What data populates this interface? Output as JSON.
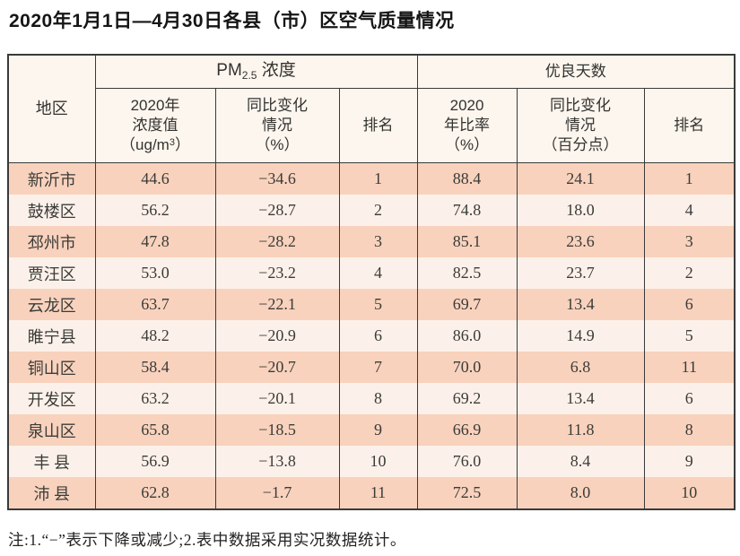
{
  "title": "2020年1月1日—4月30日各县（市）区空气质量情况",
  "table": {
    "region_header": "地区",
    "pm_group": {
      "prefix": "PM",
      "sub": "2.5",
      "suffix": " 浓度"
    },
    "good_days_group": "优良天数",
    "pm_conc_header": {
      "line1": "2020年",
      "line2": "浓度值",
      "line3_pre": "（ug/m",
      "line3_sup": "3",
      "line3_post": "）"
    },
    "pm_change_header": {
      "line1": "同比变化",
      "line2": "情况",
      "line3": "（%）"
    },
    "pm_rank_header": "排名",
    "ratio_header": {
      "line1": "2020",
      "line2": "年比率",
      "line3": "（%）"
    },
    "ratio_change_header": {
      "line1": "同比变化",
      "line2": "情况",
      "line3": "（百分点）"
    },
    "ratio_rank_header": "排名",
    "rows": [
      {
        "region": "新沂市",
        "pm_value": "44.6",
        "pm_change": "−34.6",
        "pm_rank": "1",
        "ratio": "88.4",
        "ratio_change": "24.1",
        "ratio_rank": "1"
      },
      {
        "region": "鼓楼区",
        "pm_value": "56.2",
        "pm_change": "−28.7",
        "pm_rank": "2",
        "ratio": "74.8",
        "ratio_change": "18.0",
        "ratio_rank": "4"
      },
      {
        "region": "邳州市",
        "pm_value": "47.8",
        "pm_change": "−28.2",
        "pm_rank": "3",
        "ratio": "85.1",
        "ratio_change": "23.6",
        "ratio_rank": "3"
      },
      {
        "region": "贾汪区",
        "pm_value": "53.0",
        "pm_change": "−23.2",
        "pm_rank": "4",
        "ratio": "82.5",
        "ratio_change": "23.7",
        "ratio_rank": "2"
      },
      {
        "region": "云龙区",
        "pm_value": "63.7",
        "pm_change": "−22.1",
        "pm_rank": "5",
        "ratio": "69.7",
        "ratio_change": "13.4",
        "ratio_rank": "6"
      },
      {
        "region": "睢宁县",
        "pm_value": "48.2",
        "pm_change": "−20.9",
        "pm_rank": "6",
        "ratio": "86.0",
        "ratio_change": "14.9",
        "ratio_rank": "5"
      },
      {
        "region": "铜山区",
        "pm_value": "58.4",
        "pm_change": "−20.7",
        "pm_rank": "7",
        "ratio": "70.0",
        "ratio_change": "6.8",
        "ratio_rank": "11"
      },
      {
        "region": "开发区",
        "pm_value": "63.2",
        "pm_change": "−20.1",
        "pm_rank": "8",
        "ratio": "69.2",
        "ratio_change": "13.4",
        "ratio_rank": "6"
      },
      {
        "region": "泉山区",
        "pm_value": "65.8",
        "pm_change": "−18.5",
        "pm_rank": "9",
        "ratio": "66.9",
        "ratio_change": "11.8",
        "ratio_rank": "8"
      },
      {
        "region": "丰 县",
        "pm_value": "56.9",
        "pm_change": "−13.8",
        "pm_rank": "10",
        "ratio": "76.0",
        "ratio_change": "8.4",
        "ratio_rank": "9"
      },
      {
        "region": "沛 县",
        "pm_value": "62.8",
        "pm_change": "−1.7",
        "pm_rank": "11",
        "ratio": "72.5",
        "ratio_change": "8.0",
        "ratio_rank": "10"
      }
    ]
  },
  "note": "注:1.“−”表示下降或减少;2.表中数据采用实况数据统计。",
  "colors": {
    "row_pink": "#f8d2bd",
    "row_light": "#fcf1ea",
    "header_bg": "#fdf6ee",
    "border": "#3a3a3a"
  }
}
